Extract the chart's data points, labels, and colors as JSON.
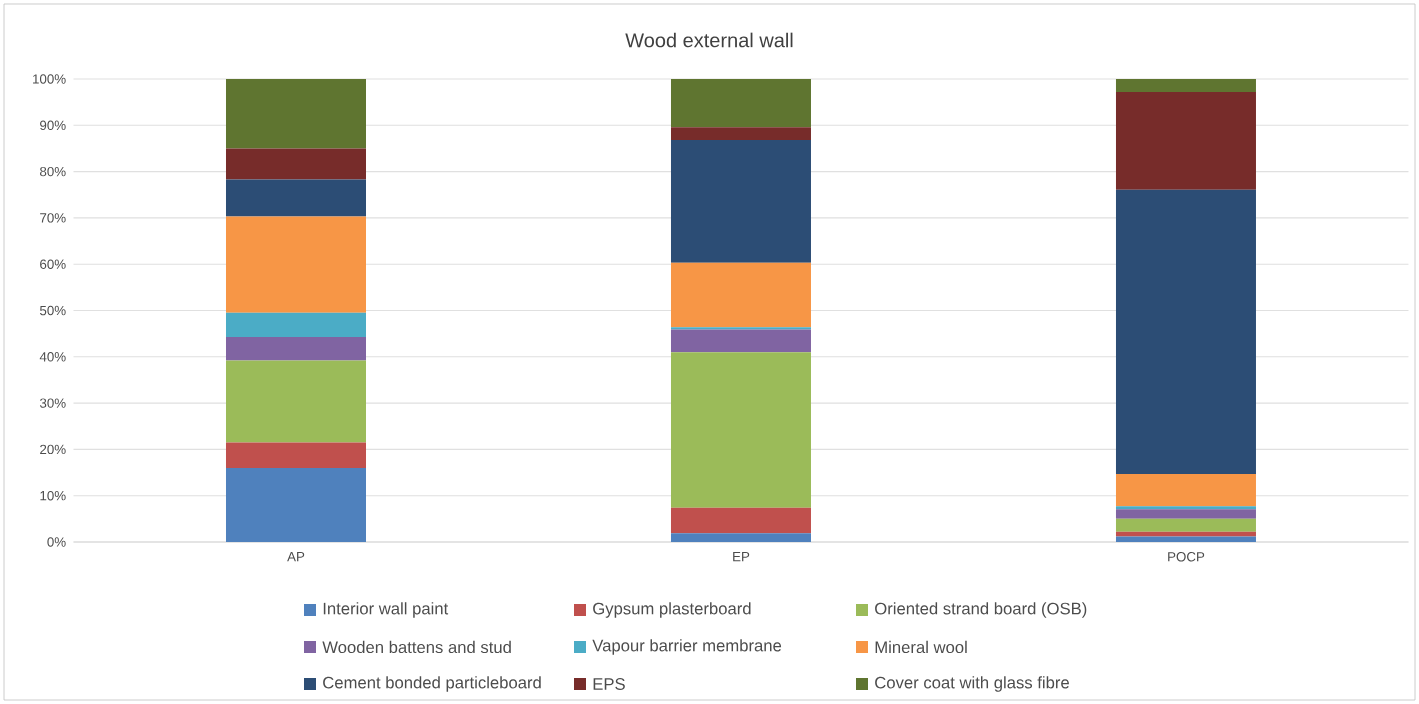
{
  "chart_data": {
    "type": "bar",
    "stacked": true,
    "title": "Wood external wall",
    "categories": [
      "AP",
      "EP",
      "POCP"
    ],
    "series": [
      {
        "name": "Interior wall paint",
        "color": "#4f81bd",
        "values": [
          16.0,
          1.9,
          1.2
        ]
      },
      {
        "name": "Gypsum plasterboard",
        "color": "#c0504d",
        "values": [
          5.5,
          5.5,
          1.0
        ]
      },
      {
        "name": "Oriented strand board (OSB)",
        "color": "#9bbb59",
        "values": [
          17.7,
          33.6,
          2.8
        ]
      },
      {
        "name": "Wooden battens and stud",
        "color": "#8064a2",
        "values": [
          5.1,
          4.9,
          2.1
        ]
      },
      {
        "name": "Vapour barrier membrane",
        "color": "#4bacc6",
        "values": [
          5.2,
          0.5,
          0.6
        ]
      },
      {
        "name": "Mineral wool",
        "color": "#f79646",
        "values": [
          20.8,
          13.9,
          7.0
        ]
      },
      {
        "name": "Cement bonded particleboard",
        "color": "#2c4d75",
        "values": [
          8.0,
          26.5,
          61.4
        ]
      },
      {
        "name": "EPS",
        "color": "#772c2a",
        "values": [
          6.7,
          2.8,
          21.1
        ]
      },
      {
        "name": "Cover coat with glass fibre",
        "color": "#5f7530",
        "values": [
          15.0,
          10.4,
          2.8
        ]
      }
    ],
    "ylim": [
      0,
      100
    ],
    "yticks": [
      {
        "value": 0,
        "label": "0%"
      },
      {
        "value": 10,
        "label": "10%"
      },
      {
        "value": 20,
        "label": "20%"
      },
      {
        "value": 30,
        "label": "30%"
      },
      {
        "value": 40,
        "label": "40%"
      },
      {
        "value": 50,
        "label": "50%"
      },
      {
        "value": 60,
        "label": "60%"
      },
      {
        "value": 70,
        "label": "70%"
      },
      {
        "value": 80,
        "label": "80%"
      },
      {
        "value": 90,
        "label": "90%"
      },
      {
        "value": 100,
        "label": "100%"
      }
    ],
    "grid": "y",
    "legend": "bottom"
  }
}
